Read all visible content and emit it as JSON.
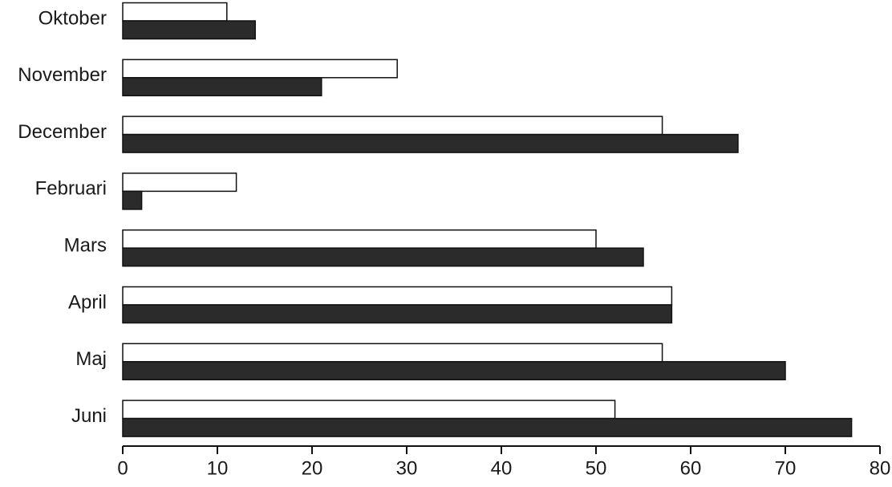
{
  "chart_data": {
    "type": "bar",
    "orientation": "horizontal",
    "categories": [
      "Oktober",
      "November",
      "December",
      "Februari",
      "Mars",
      "April",
      "Maj",
      "Juni"
    ],
    "series": [
      {
        "color": "#ffffff",
        "values": [
          11,
          29,
          57,
          12,
          50,
          58,
          57,
          52
        ]
      },
      {
        "color": "#2b2b2b",
        "values": [
          14,
          21,
          65,
          2,
          55,
          58,
          70,
          77
        ]
      }
    ],
    "xlim": [
      0,
      80
    ],
    "xticks": [
      0,
      10,
      20,
      30,
      40,
      50,
      60,
      70,
      80
    ],
    "grid": false
  }
}
